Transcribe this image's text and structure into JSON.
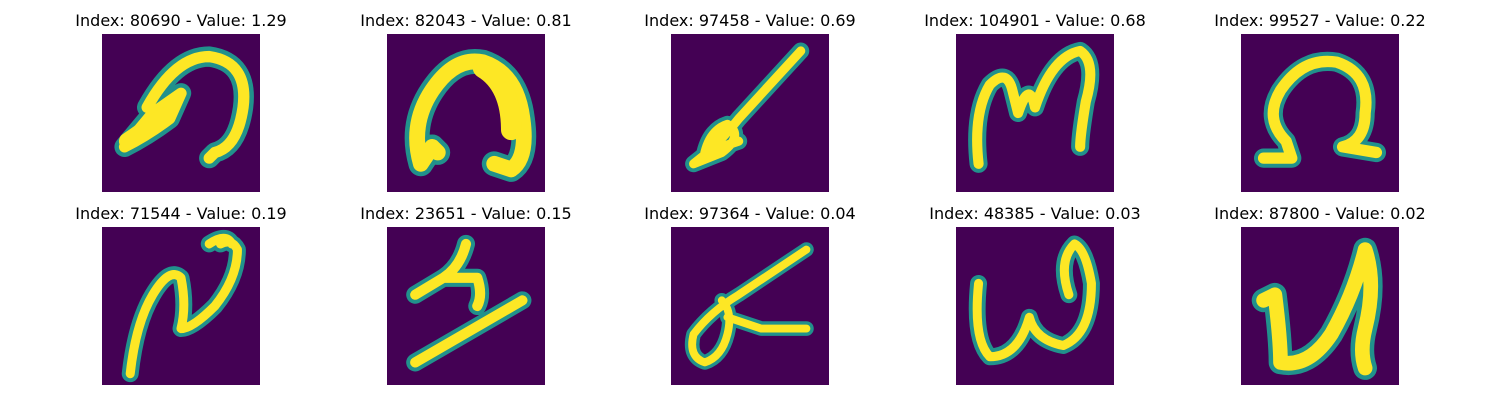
{
  "colors": {
    "background": "#440154",
    "stroke_mid": "#21918c",
    "stroke_core": "#fde725",
    "title_text": "#000000"
  },
  "panels": [
    {
      "title": "Index: 80690 - Value: 1.29",
      "index": 80690,
      "value": 1.29
    },
    {
      "title": "Index: 82043 - Value: 0.81",
      "index": 82043,
      "value": 0.81
    },
    {
      "title": "Index: 97458 - Value: 0.69",
      "index": 97458,
      "value": 0.69
    },
    {
      "title": "Index: 104901 - Value: 0.68",
      "index": 104901,
      "value": 0.68
    },
    {
      "title": "Index: 99527 - Value: 0.22",
      "index": 99527,
      "value": 0.22
    },
    {
      "title": "Index: 71544 - Value: 0.19",
      "index": 71544,
      "value": 0.19
    },
    {
      "title": "Index: 23651 - Value: 0.15",
      "index": 23651,
      "value": 0.15
    },
    {
      "title": "Index: 97364 - Value: 0.04",
      "index": 97364,
      "value": 0.04
    },
    {
      "title": "Index: 48385 - Value: 0.03",
      "index": 48385,
      "value": 0.03
    },
    {
      "title": "Index: 87800 - Value: 0.02",
      "index": 87800,
      "value": 0.02
    }
  ]
}
